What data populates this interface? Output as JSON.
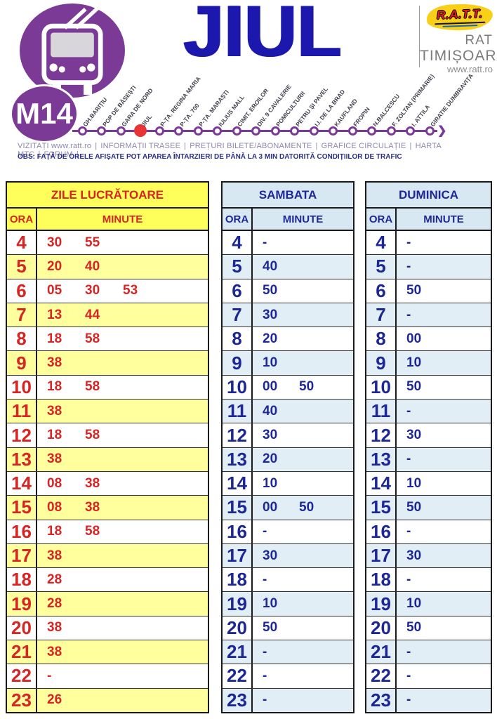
{
  "brand": {
    "line_badge": "M14",
    "route_title": "JIUL",
    "logo_text": "R.A.T.T.",
    "operator_name_1": "RAT",
    "operator_name_2": "TIMIȘOARA",
    "website": "www.ratt.ro"
  },
  "route": {
    "current_stop": "JIUL",
    "stops": [
      "GH.BARIȚIU",
      "POP DE BĂSEȘTI",
      "GARA DE NORD",
      "JIUL",
      "P-ȚA. REGINA MARIA",
      "P-ȚA. 700",
      "P-ȚA. MARAȘTI",
      "IULIUS MALL",
      "CIMIT. EROILOR",
      "DIV. 9 CAVALERIE",
      "POMICULTURII",
      "PETRU ȘI PAVEL",
      "I.I. DE LA BRAD",
      "KAUFLAND",
      "FROPIN",
      "N.BALCESCU",
      "F. ZOLTAN (PRIMARIE)",
      "I. ATTILA",
      "GIRATIE DUMBRAVIȚA"
    ]
  },
  "links_bar": {
    "items": [
      "VIZITAȚI www.ratt.ro",
      "INFORMAȚII TRASEE",
      "PREȚURI BILETE/ABONAMENTE",
      "GRAFICE CIRCULAȚIE",
      "HARTA MTC",
      "FORUM"
    ],
    "separator": "|"
  },
  "obs_note": "OBS: FAȚĂ DE ORELE AFIȘATE POT APAREA ÎNTARZIERI DE PÂNĂ LA 3 MIN DATORITĂ CONDIȚIILOR DE TRAFIC",
  "tables": [
    {
      "title": "ZILE LUCRĂTOARE",
      "theme": "yellow",
      "hour_header": "ORA",
      "minute_header": "MINUTE",
      "rows": [
        {
          "hour": "4",
          "minutes": [
            "30",
            "55"
          ]
        },
        {
          "hour": "5",
          "minutes": [
            "20",
            "40"
          ]
        },
        {
          "hour": "6",
          "minutes": [
            "05",
            "30",
            "53"
          ]
        },
        {
          "hour": "7",
          "minutes": [
            "13",
            "44"
          ]
        },
        {
          "hour": "8",
          "minutes": [
            "18",
            "58"
          ]
        },
        {
          "hour": "9",
          "minutes": [
            "38"
          ]
        },
        {
          "hour": "10",
          "minutes": [
            "18",
            "58"
          ]
        },
        {
          "hour": "11",
          "minutes": [
            "38"
          ]
        },
        {
          "hour": "12",
          "minutes": [
            "18",
            "58"
          ]
        },
        {
          "hour": "13",
          "minutes": [
            "38"
          ]
        },
        {
          "hour": "14",
          "minutes": [
            "08",
            "38"
          ]
        },
        {
          "hour": "15",
          "minutes": [
            "08",
            "38"
          ]
        },
        {
          "hour": "16",
          "minutes": [
            "18",
            "58"
          ]
        },
        {
          "hour": "17",
          "minutes": [
            "38"
          ]
        },
        {
          "hour": "18",
          "minutes": [
            "28"
          ]
        },
        {
          "hour": "19",
          "minutes": [
            "28"
          ]
        },
        {
          "hour": "20",
          "minutes": [
            "38"
          ]
        },
        {
          "hour": "21",
          "minutes": [
            "38"
          ]
        },
        {
          "hour": "22",
          "minutes": [
            "-"
          ]
        },
        {
          "hour": "23",
          "minutes": [
            "26"
          ]
        }
      ]
    },
    {
      "title": "SAMBATA",
      "theme": "blue",
      "hour_header": "ORA",
      "minute_header": "MINUTE",
      "rows": [
        {
          "hour": "4",
          "minutes": [
            "-"
          ]
        },
        {
          "hour": "5",
          "minutes": [
            "40"
          ]
        },
        {
          "hour": "6",
          "minutes": [
            "50"
          ]
        },
        {
          "hour": "7",
          "minutes": [
            "30"
          ]
        },
        {
          "hour": "8",
          "minutes": [
            "20"
          ]
        },
        {
          "hour": "9",
          "minutes": [
            "10"
          ]
        },
        {
          "hour": "10",
          "minutes": [
            "00",
            "50"
          ]
        },
        {
          "hour": "11",
          "minutes": [
            "40"
          ]
        },
        {
          "hour": "12",
          "minutes": [
            "30"
          ]
        },
        {
          "hour": "13",
          "minutes": [
            "20"
          ]
        },
        {
          "hour": "14",
          "minutes": [
            "10"
          ]
        },
        {
          "hour": "15",
          "minutes": [
            "00",
            "50"
          ]
        },
        {
          "hour": "16",
          "minutes": [
            "-"
          ]
        },
        {
          "hour": "17",
          "minutes": [
            "30"
          ]
        },
        {
          "hour": "18",
          "minutes": [
            "-"
          ]
        },
        {
          "hour": "19",
          "minutes": [
            "10"
          ]
        },
        {
          "hour": "20",
          "minutes": [
            "50"
          ]
        },
        {
          "hour": "21",
          "minutes": [
            "-"
          ]
        },
        {
          "hour": "22",
          "minutes": [
            "-"
          ]
        },
        {
          "hour": "23",
          "minutes": [
            "-"
          ]
        }
      ]
    },
    {
      "title": "DUMINICA",
      "theme": "blue",
      "hour_header": "ORA",
      "minute_header": "MINUTE",
      "rows": [
        {
          "hour": "4",
          "minutes": [
            "-"
          ]
        },
        {
          "hour": "5",
          "minutes": [
            "-"
          ]
        },
        {
          "hour": "6",
          "minutes": [
            "50"
          ]
        },
        {
          "hour": "7",
          "minutes": [
            "-"
          ]
        },
        {
          "hour": "8",
          "minutes": [
            "00"
          ]
        },
        {
          "hour": "9",
          "minutes": [
            "10"
          ]
        },
        {
          "hour": "10",
          "minutes": [
            "50"
          ]
        },
        {
          "hour": "11",
          "minutes": [
            "-"
          ]
        },
        {
          "hour": "12",
          "minutes": [
            "30"
          ]
        },
        {
          "hour": "13",
          "minutes": [
            "-"
          ]
        },
        {
          "hour": "14",
          "minutes": [
            "10"
          ]
        },
        {
          "hour": "15",
          "minutes": [
            "50"
          ]
        },
        {
          "hour": "16",
          "minutes": [
            "-"
          ]
        },
        {
          "hour": "17",
          "minutes": [
            "30"
          ]
        },
        {
          "hour": "18",
          "minutes": [
            "-"
          ]
        },
        {
          "hour": "19",
          "minutes": [
            "10"
          ]
        },
        {
          "hour": "20",
          "minutes": [
            "50"
          ]
        },
        {
          "hour": "21",
          "minutes": [
            "-"
          ]
        },
        {
          "hour": "22",
          "minutes": [
            "-"
          ]
        },
        {
          "hour": "23",
          "minutes": [
            "-"
          ]
        }
      ]
    }
  ],
  "colors": {
    "purple": "#7a3a96",
    "title_navy": "#1d18ad",
    "table_red": "#d92424",
    "yellow_header": "#ffff5c",
    "yellow_row": "#ffff9e",
    "blue_header": "#d7e8f2",
    "blue_row": "#e2eef6",
    "current_stop_red": "#e93434"
  }
}
